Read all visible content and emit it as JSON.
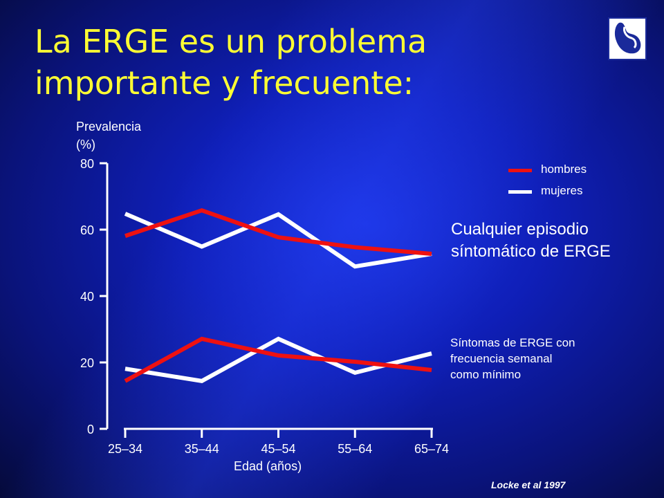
{
  "slide": {
    "title_line1": "La ERGE es un problema",
    "title_line2": "importante y frecuente:",
    "source": "Locke et al 1997"
  },
  "colors": {
    "title": "#ffff33",
    "hombres": "#ee1111",
    "mujeres": "#ffffff",
    "text": "#ffffff",
    "background": "#1222c8"
  },
  "chart_data": {
    "type": "line",
    "ylabel_line1": "Prevalencia",
    "ylabel_line2": "(%)",
    "xlabel": "Edad (años)",
    "categories": [
      "25–34",
      "35–44",
      "45–54",
      "55–64",
      "65–74"
    ],
    "yticks": [
      "0",
      "20",
      "40",
      "60",
      "80"
    ],
    "ylim": [
      0,
      80
    ],
    "grid": false,
    "legend": {
      "position": "top-right",
      "entries": [
        {
          "label": "hombres",
          "color": "#ee1111"
        },
        {
          "label": "mujeres",
          "color": "#ffffff"
        }
      ]
    },
    "annotations": {
      "any_episode_line1": "Cualquier episodio",
      "any_episode_line2": "síntomático de ERGE",
      "weekly_line1": "Síntomas de ERGE con",
      "weekly_line2": "frecuencia semanal",
      "weekly_line3": "como mínimo"
    },
    "series": [
      {
        "group": "Cualquier episodio",
        "legend": "mujeres",
        "color": "#ffffff",
        "values": [
          64.8,
          54.9,
          64.6,
          48.9,
          52.7
        ]
      },
      {
        "group": "Cualquier episodio",
        "legend": "hombres",
        "color": "#ee1111",
        "values": [
          58.1,
          65.8,
          57.7,
          54.7,
          52.7
        ]
      },
      {
        "group": "Semanal",
        "legend": "mujeres",
        "color": "#ffffff",
        "values": [
          18.1,
          14.4,
          27.1,
          16.9,
          22.7
        ]
      },
      {
        "group": "Semanal",
        "legend": "hombres",
        "color": "#ee1111",
        "values": [
          14.4,
          27.1,
          22.1,
          20.2,
          17.7
        ]
      }
    ]
  }
}
